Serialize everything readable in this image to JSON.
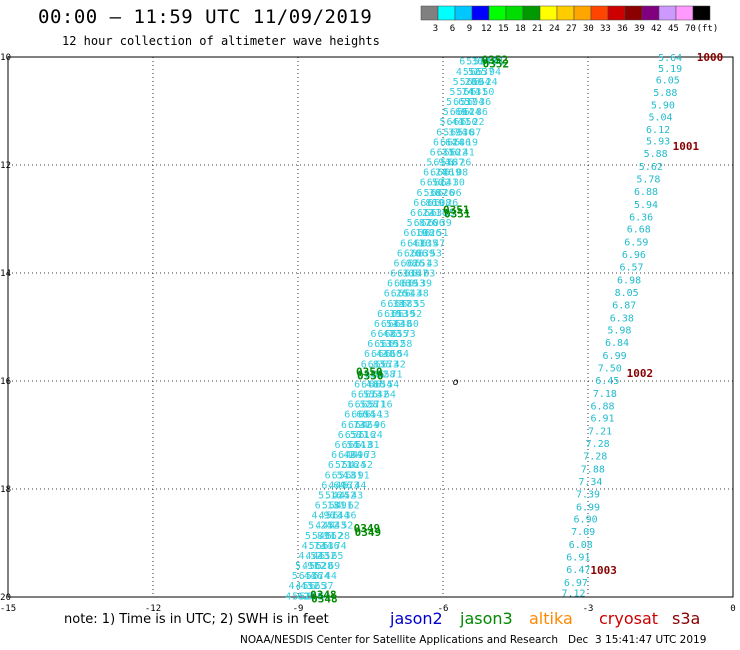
{
  "header": {
    "title": "00:00 – 11:59 UTC 11/09/2019",
    "subtitle": "12 hour collection of altimeter wave heights"
  },
  "colorbar": {
    "labels": [
      "3",
      "6",
      "9",
      "12",
      "15",
      "18",
      "21",
      "24",
      "27",
      "30",
      "33",
      "36",
      "39",
      "42",
      "45",
      "70",
      "(ft)"
    ],
    "colors": [
      "#808080",
      "#00ffff",
      "#00c8ff",
      "#0000ff",
      "#00ff00",
      "#00dd00",
      "#009900",
      "#ffff00",
      "#ffcc00",
      "#ffa500",
      "#ff4500",
      "#cc0000",
      "#8b0000",
      "#800080",
      "#cc99ff",
      "#ff99ff",
      "#000000"
    ]
  },
  "note": "note: 1) Time is in UTC; 2) SWH is in feet",
  "legend": [
    {
      "name": "jason2",
      "color": "#0000cc"
    },
    {
      "name": "jason3",
      "color": "#008800"
    },
    {
      "name": "altika",
      "color": "#ff8800"
    },
    {
      "name": "cryosat",
      "color": "#cc0000"
    },
    {
      "name": "s3a",
      "color": "#880000"
    }
  ],
  "footer": "NOAA/NESDIS Center for Satellite Applications and Research   Dec  3 15:41:47 UTC 2019",
  "chart_data": {
    "type": "scatter",
    "xlim": [
      -15,
      0
    ],
    "ylim": [
      -20,
      -10
    ],
    "xticks": [
      "-15",
      "-12",
      "-9",
      "-6",
      "-3",
      "0"
    ],
    "yticks": [
      "-10",
      "-12",
      "-14",
      "-16",
      "-18",
      "-20"
    ],
    "grid": true,
    "track_a": {
      "color": "#33ccdd",
      "start": [
        -5.25,
        -10.05
      ],
      "end": [
        -8.85,
        -19.95
      ],
      "values": [
        "6.36",
        "4.52",
        "5.28",
        "5.74",
        "5.65",
        "5.69",
        "5.44",
        "6.37",
        "6.64",
        "6.31",
        "5.94",
        "6.24",
        "6.50",
        "6.36",
        "6.86",
        "6.22",
        "5.87",
        "6.19",
        "6.41",
        "6.26",
        "6.08",
        "6.30",
        "6.06",
        "6.26",
        "6.35",
        "6.39",
        "6.51",
        "6.47",
        "6.53",
        "6.43",
        "6.83",
        "6.39",
        "6.48",
        "6.55",
        "6.52",
        "6.60",
        "6.73",
        "6.58",
        "6.54",
        "6.42",
        "6.71",
        "6.54",
        "6.64",
        "5.16",
        "6.13",
        "4.96",
        "5.24",
        "5.81",
        "4.73",
        "4.52",
        "5.91",
        "5.44",
        "4.43",
        "4.62"
      ]
    },
    "track_b": {
      "color": "#22bbcc",
      "x": [
        -1.3,
        -1.3,
        -1.35,
        -1.4,
        -1.45,
        -1.5,
        -1.55,
        -1.55,
        -1.6,
        -1.7,
        -1.75,
        -1.8,
        -1.8,
        -1.9,
        -1.95,
        -2.0,
        -2.05,
        -2.1,
        -2.15,
        -2.2,
        -2.25,
        -2.3,
        -2.35,
        -2.4,
        -2.45,
        -2.55,
        -2.6,
        -2.65,
        -2.7,
        -2.7,
        -2.75,
        -2.8,
        -2.85,
        -2.9,
        -2.95,
        -3.0,
        -3.0,
        -3.05,
        -3.1,
        -3.15,
        -3.2,
        -3.2
      ],
      "y": [
        -10.0,
        -10.2,
        -10.42,
        -10.65,
        -10.88,
        -11.1,
        -11.33,
        -11.55,
        -11.78,
        -12.02,
        -12.25,
        -12.48,
        -12.72,
        -12.95,
        -13.18,
        -13.42,
        -13.65,
        -13.88,
        -14.12,
        -14.35,
        -14.58,
        -14.82,
        -15.05,
        -15.28,
        -15.52,
        -15.75,
        -15.98,
        -16.22,
        -16.45,
        -16.68,
        -16.92,
        -17.15,
        -17.38,
        -17.62,
        -17.85,
        -18.08,
        -18.32,
        -18.55,
        -18.78,
        -19.02,
        -19.25,
        -19.48
      ],
      "values": [
        "5.64",
        "5.19",
        "6.05",
        "5.88",
        "5.90",
        "5.04",
        "6.12",
        "5.93",
        "5.88",
        "5.62",
        "5.78",
        "6.88",
        "5.94",
        "6.36",
        "6.68",
        "6.59",
        "6.96",
        "6.57",
        "6.98",
        "8.05",
        "6.87",
        "6.38",
        "5.98",
        "6.84",
        "6.99",
        "7.50",
        "6.45",
        "7.18",
        "6.88",
        "6.91",
        "7.21",
        "7.28",
        "7.28",
        "7.88",
        "7.34",
        "7.39",
        "6.99",
        "6.90",
        "7.09",
        "6.08",
        "6.91",
        "6.47"
      ],
      "tail": [
        {
          "x": -3.25,
          "y": -19.72,
          "v": "6.97"
        },
        {
          "x": -3.3,
          "y": -19.92,
          "v": "7.12"
        }
      ]
    },
    "time_labels": [
      {
        "x": -5.2,
        "y": -10.05,
        "text": "0352",
        "color": "#008800"
      },
      {
        "x": -6.0,
        "y": -12.82,
        "text": "0351",
        "color": "#008800"
      },
      {
        "x": -7.8,
        "y": -15.82,
        "text": "0350",
        "color": "#008800"
      },
      {
        "x": -7.85,
        "y": -18.72,
        "text": "0349",
        "color": "#008800"
      },
      {
        "x": -8.75,
        "y": -19.95,
        "text": "0348",
        "color": "#008800"
      },
      {
        "x": -0.75,
        "y": -10.0,
        "text": "1000",
        "color": "#880000"
      },
      {
        "x": -1.25,
        "y": -11.65,
        "text": "1001",
        "color": "#880000"
      },
      {
        "x": -2.2,
        "y": -15.85,
        "text": "1002",
        "color": "#880000"
      },
      {
        "x": -2.95,
        "y": -19.5,
        "text": "1003",
        "color": "#880000"
      }
    ],
    "marker": {
      "x": -5.8,
      "y": -16.0,
      "text": "o"
    }
  }
}
